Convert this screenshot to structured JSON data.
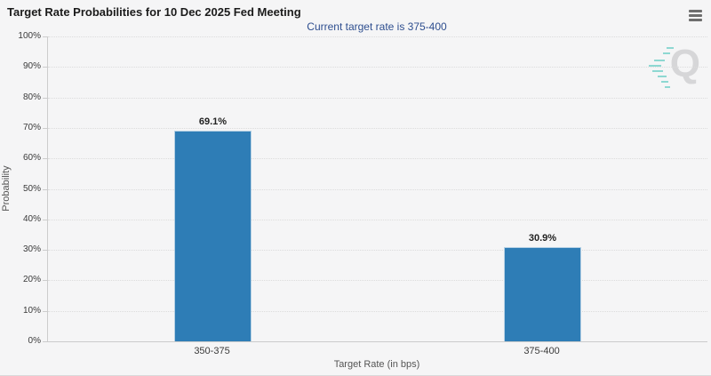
{
  "header": {
    "title": "Target Rate Probabilities for 10 Dec 2025 Fed Meeting",
    "subtitle": "Current target rate is 375-400"
  },
  "menu": {
    "icon": "hamburger-icon"
  },
  "watermark": {
    "icon": "quikstrike-q-logo",
    "letter": "Q"
  },
  "chart_data": {
    "type": "bar",
    "title": "Target Rate Probabilities for 10 Dec 2025 Fed Meeting",
    "subtitle": "Current target rate is 375-400",
    "categories": [
      "350-375",
      "375-400"
    ],
    "values": [
      69.1,
      30.9
    ],
    "value_labels": [
      "69.1%",
      "30.9%"
    ],
    "xlabel": "Target Rate (in bps)",
    "ylabel": "Probability",
    "ylim": [
      0,
      100
    ],
    "ytick_step": 10,
    "ytick_labels": [
      "0%",
      "10%",
      "20%",
      "30%",
      "40%",
      "50%",
      "60%",
      "70%",
      "80%",
      "90%",
      "100%"
    ],
    "grid": "horizontal-dotted",
    "legend_position": "none",
    "bar_color": "#2e7db6"
  },
  "colors": {
    "background": "#f5f5f6",
    "title": "#1b1b1b",
    "subtitle": "#2e4e8f",
    "bar": "#2e7db6",
    "gridline": "#dcdcdc",
    "axis_line": "#cccccc",
    "axis_label": "#3a3a3a",
    "axis_title": "#555555",
    "data_label": "#222222",
    "watermark_gray": "#d6d6d8",
    "watermark_teal": "#8ed8d2",
    "menu_icon": "#6e6e6e"
  }
}
